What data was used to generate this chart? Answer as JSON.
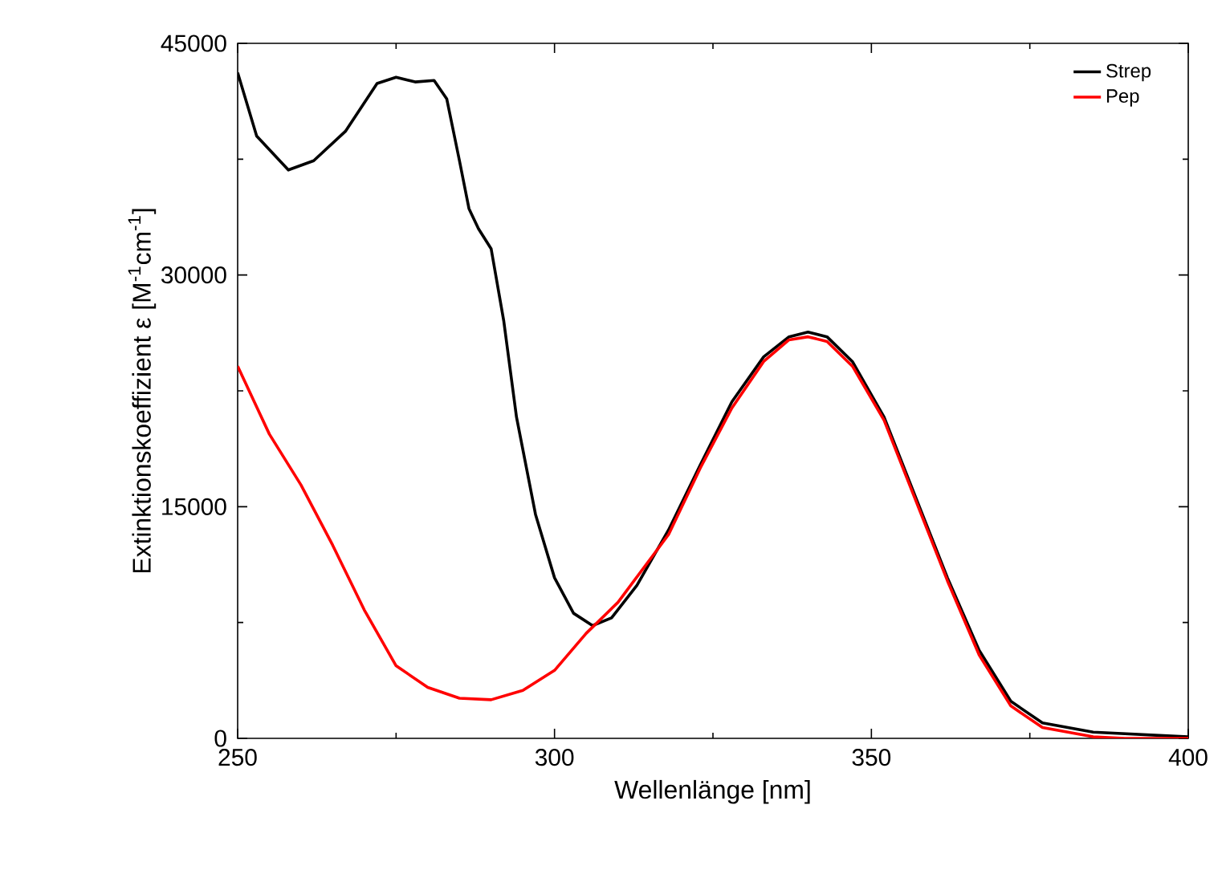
{
  "chart_data": {
    "type": "line",
    "xlabel": "Wellenlänge [nm]",
    "ylabel": "Extinktionskoeffizient ε [M$^{-1}$cm$^{-1}$]",
    "xlim": [
      250,
      400
    ],
    "ylim": [
      0,
      45000
    ],
    "xticks": [
      250,
      300,
      350,
      400
    ],
    "yticks": [
      0,
      15000,
      30000,
      45000
    ],
    "legend": "top right",
    "grid": false,
    "series": [
      {
        "name": "Strep",
        "color": "#000000",
        "x": [
          250,
          253,
          258,
          262,
          267,
          272,
          275,
          278,
          281,
          283,
          285,
          286.5,
          288,
          290,
          292,
          294,
          297,
          300,
          303,
          306,
          309,
          313,
          318,
          323,
          328,
          333,
          337,
          340,
          343,
          347,
          352,
          357,
          362,
          367,
          372,
          377,
          385,
          400
        ],
        "values": [
          43100,
          39000,
          36800,
          37400,
          39300,
          42400,
          42800,
          42500,
          42600,
          41400,
          37400,
          34300,
          33000,
          31700,
          27000,
          20800,
          14500,
          10400,
          8100,
          7300,
          7800,
          9900,
          13500,
          17700,
          21800,
          24700,
          26000,
          26300,
          26000,
          24400,
          20800,
          15600,
          10400,
          5700,
          2400,
          1000,
          400,
          100
        ]
      },
      {
        "name": "Pep",
        "color": "#ff0000",
        "x": [
          250,
          255,
          260,
          265,
          270,
          275,
          280,
          285,
          290,
          295,
          300,
          305,
          310,
          318,
          323,
          328,
          333,
          337,
          340,
          343,
          347,
          352,
          357,
          362,
          367,
          372,
          377,
          385,
          390,
          400
        ],
        "values": [
          24100,
          19700,
          16400,
          12500,
          8300,
          4700,
          3300,
          2600,
          2500,
          3100,
          4400,
          6800,
          8800,
          13200,
          17500,
          21400,
          24400,
          25800,
          26000,
          25700,
          24100,
          20600,
          15400,
          10200,
          5400,
          2100,
          700,
          100,
          0,
          0
        ]
      }
    ]
  }
}
